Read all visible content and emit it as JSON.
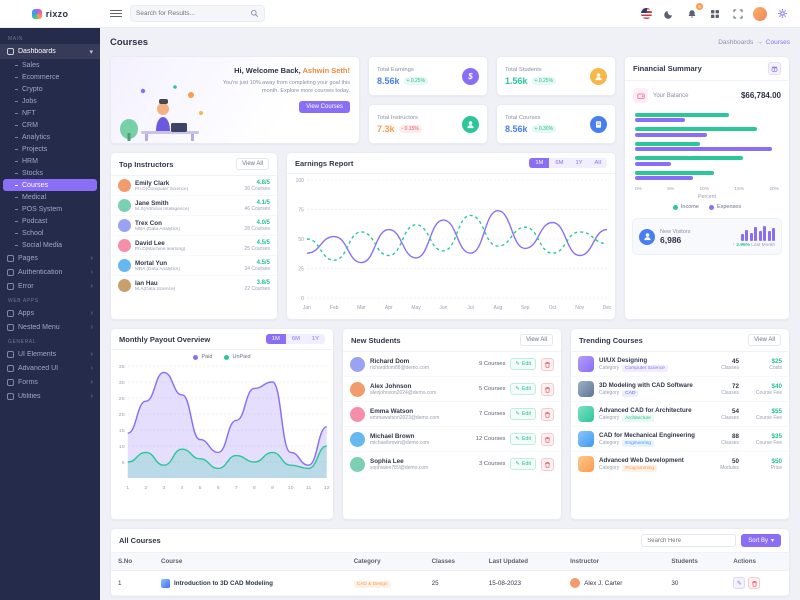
{
  "app": {
    "name": "rixzo"
  },
  "icons": {
    "chevron_right": "›",
    "chevron_down": "▾",
    "breadcrumb_arrow": "→",
    "caret_down": "▾",
    "up_arrow": "↑",
    "edit_pencil": "✎"
  },
  "header": {
    "search_placeholder": "Search for Results...",
    "bell_badge": "5"
  },
  "page": {
    "title": "Courses",
    "breadcrumb": {
      "parent": "Dashboards",
      "current": "Courses"
    }
  },
  "sidebar": {
    "section_main": "MAIN",
    "dashboards": "Dashboards",
    "dashboard_children": [
      "Sales",
      "Ecommerce",
      "Crypto",
      "Jobs",
      "NFT",
      "CRM",
      "Analytics",
      "Projects",
      "HRM",
      "Stocks",
      "Courses",
      "Medical",
      "POS System",
      "Podcast",
      "School",
      "Social Media"
    ],
    "items2": [
      "Pages",
      "Authentication",
      "Error"
    ],
    "section_webapps": "WEB APPS",
    "items3": [
      "Apps",
      "Nested Menu"
    ],
    "section_general": "GENERAL",
    "items4": [
      "UI Elements",
      "Advanced UI",
      "Forms",
      "Utilities"
    ]
  },
  "welcome": {
    "greeting": "Hi, Welcome Back,",
    "name": "Ashwin Seth!",
    "subtitle": "You're just 10% away from completing your goal this month. Explore more courses today.",
    "button": "View Courses"
  },
  "stats": [
    {
      "label": "Total Earnings",
      "value": "8.56k",
      "delta": "+ 0.25%",
      "glyph": "$"
    },
    {
      "label": "Total Students",
      "value": "1.56k",
      "delta": "+ 0.25%"
    },
    {
      "label": "Total Instructors",
      "value": "7.3k",
      "delta": "- 0.15%"
    },
    {
      "label": "Total Courses",
      "value": "8.56k",
      "delta": "+ 0.30%"
    }
  ],
  "financial": {
    "title": "Financial Summary",
    "balance_label": "Your Balance",
    "balance_value": "$66,784.00",
    "axis_label": "Percent",
    "legend": [
      "Income",
      "Expenses"
    ],
    "visitors_label": "New Visitors",
    "visitors_value": "6,986",
    "visitors_delta": "2.95%",
    "visitors_caption": "Last Month"
  },
  "instructors": {
    "title": "Top Instructors",
    "view_all": "View All",
    "rows": [
      {
        "name": "Emily Clark",
        "field": "Ph.D(Computer Science)",
        "rating": "4.8/5",
        "courses": "36 Courses"
      },
      {
        "name": "Jane Smith",
        "field": "M.S(Artificial Intelligence)",
        "rating": "4.1/5",
        "courses": "46 Courses"
      },
      {
        "name": "Trex Con",
        "field": "MBA (Data Analytics)",
        "rating": "4.0/5",
        "courses": "28 Courses"
      },
      {
        "name": "David Lee",
        "field": "Ph.D(Machine learning)",
        "rating": "4.5/5",
        "courses": "25 Courses"
      },
      {
        "name": "Mortal Yun",
        "field": "MBA (Data Analytics)",
        "rating": "4.5/5",
        "courses": "34 Courses"
      },
      {
        "name": "Ian Hau",
        "field": "M.A(Data Science)",
        "rating": "3.8/5",
        "courses": "22 Courses"
      }
    ]
  },
  "earnings_card": {
    "title": "Earnings Report",
    "tabs": [
      "1M",
      "6M",
      "1Y",
      "All"
    ],
    "active_tab": "1M"
  },
  "payout_card": {
    "title": "Monthly Payout Overview",
    "tabs": [
      "1M",
      "6M",
      "1Y"
    ],
    "active_tab": "1M",
    "legend": [
      "Paid",
      "UnPaid"
    ]
  },
  "students": {
    "title": "New Students",
    "view_all": "View All",
    "edit_label": "Edit",
    "rows": [
      {
        "name": "Richard Dom",
        "email": "richarddom88@demo.com",
        "courses": "9 Courses"
      },
      {
        "name": "Alex Johnson",
        "email": "alexjohnson2024@demo.com",
        "courses": "5 Courses"
      },
      {
        "name": "Emma Watson",
        "email": "emmawatson2023@demo.com",
        "courses": "7 Courses"
      },
      {
        "name": "Michael Brown",
        "email": "michaelbrown@demo.com",
        "courses": "12 Courses"
      },
      {
        "name": "Sophia Lee",
        "email": "sophialee789@demo.com",
        "courses": "3 Courses"
      }
    ]
  },
  "trending": {
    "title": "Trending Courses",
    "view_all": "View All",
    "category_label": "Category",
    "rows": [
      {
        "title": "UI/UX Designing",
        "tag": "Computer Science",
        "count": "45",
        "count_label": "Classes",
        "price": "$25",
        "price_label": "Costs"
      },
      {
        "title": "3D Modeling with CAD Software",
        "tag": "CAD",
        "count": "72",
        "count_label": "Classes",
        "price": "$40",
        "price_label": "Course Fee"
      },
      {
        "title": "Advanced CAD for Architecture",
        "tag": "Architecture",
        "count": "54",
        "count_label": "Classes",
        "price": "$55",
        "price_label": "Course Fee"
      },
      {
        "title": "CAD for Mechanical Engineering",
        "tag": "Engineering",
        "count": "88",
        "count_label": "Classes",
        "price": "$35",
        "price_label": "Course Fee"
      },
      {
        "title": "Advanced Web Development",
        "tag": "Programming",
        "count": "50",
        "count_label": "Modules",
        "price": "$50",
        "price_label": "Price"
      }
    ]
  },
  "courses_table": {
    "title": "All Courses",
    "search_placeholder": "Search Here",
    "sort_button": "Sort By",
    "columns": [
      "S.No",
      "Course",
      "Category",
      "Classes",
      "Last Updated",
      "Instructor",
      "Students",
      "Actions"
    ],
    "rows": [
      {
        "sno": "1",
        "course": "Introduction to 3D CAD Modeling",
        "category": "CAD & Design",
        "classes": "25",
        "updated": "15-08-2023",
        "instructor": "Alex J. Carter",
        "students": "30"
      }
    ]
  },
  "chart_data": {
    "financial_bars": {
      "type": "bar",
      "orientation": "horizontal",
      "xlim": [
        0,
        20
      ],
      "xticks": [
        "0%",
        "5%",
        "10%",
        "15%",
        "20%"
      ],
      "series": [
        {
          "name": "Income",
          "color": "#2bc79b",
          "values": [
            13,
            17,
            9,
            15,
            11
          ]
        },
        {
          "name": "Expenses",
          "color": "#8a6ff6",
          "values": [
            7,
            10,
            19,
            5,
            8
          ]
        }
      ]
    },
    "visitors_bars": {
      "type": "bar",
      "color": "#8a6ff6",
      "values": [
        45,
        70,
        50,
        85,
        60,
        95,
        65,
        80
      ]
    },
    "earnings": {
      "type": "line",
      "x": [
        "Jan",
        "Feb",
        "Mar",
        "Apr",
        "May",
        "Jun",
        "Jul",
        "Aug",
        "Sep",
        "Oct",
        "Nov",
        "Dec"
      ],
      "ylim": [
        0,
        100
      ],
      "yticks": [
        0,
        25,
        50,
        75,
        100
      ],
      "series": [
        {
          "color": "#8a6ff6",
          "style": "solid",
          "values": [
            38,
            52,
            30,
            58,
            34,
            66,
            38,
            74,
            42,
            64,
            36,
            58
          ]
        },
        {
          "color": "#2bc79b",
          "style": "dashed",
          "values": [
            50,
            32,
            56,
            36,
            62,
            40,
            70,
            44,
            60,
            38,
            56,
            46
          ]
        }
      ]
    },
    "payout": {
      "type": "area",
      "x": [
        "1",
        "2",
        "3",
        "4",
        "5",
        "6",
        "7",
        "8",
        "9",
        "10",
        "11",
        "12"
      ],
      "ylim": [
        0,
        35
      ],
      "yticks": [
        5,
        10,
        15,
        20,
        25,
        30,
        35
      ],
      "series": [
        {
          "name": "Paid",
          "color": "#8a6ff6",
          "style": "solid",
          "values": [
            14,
            24,
            33,
            26,
            12,
            8,
            18,
            28,
            30,
            8,
            4,
            16
          ]
        },
        {
          "name": "UnPaid",
          "color": "#2bc79b",
          "style": "solid",
          "values": [
            5,
            8,
            4,
            9,
            6,
            3,
            7,
            5,
            8,
            4,
            3,
            10
          ]
        }
      ]
    }
  }
}
